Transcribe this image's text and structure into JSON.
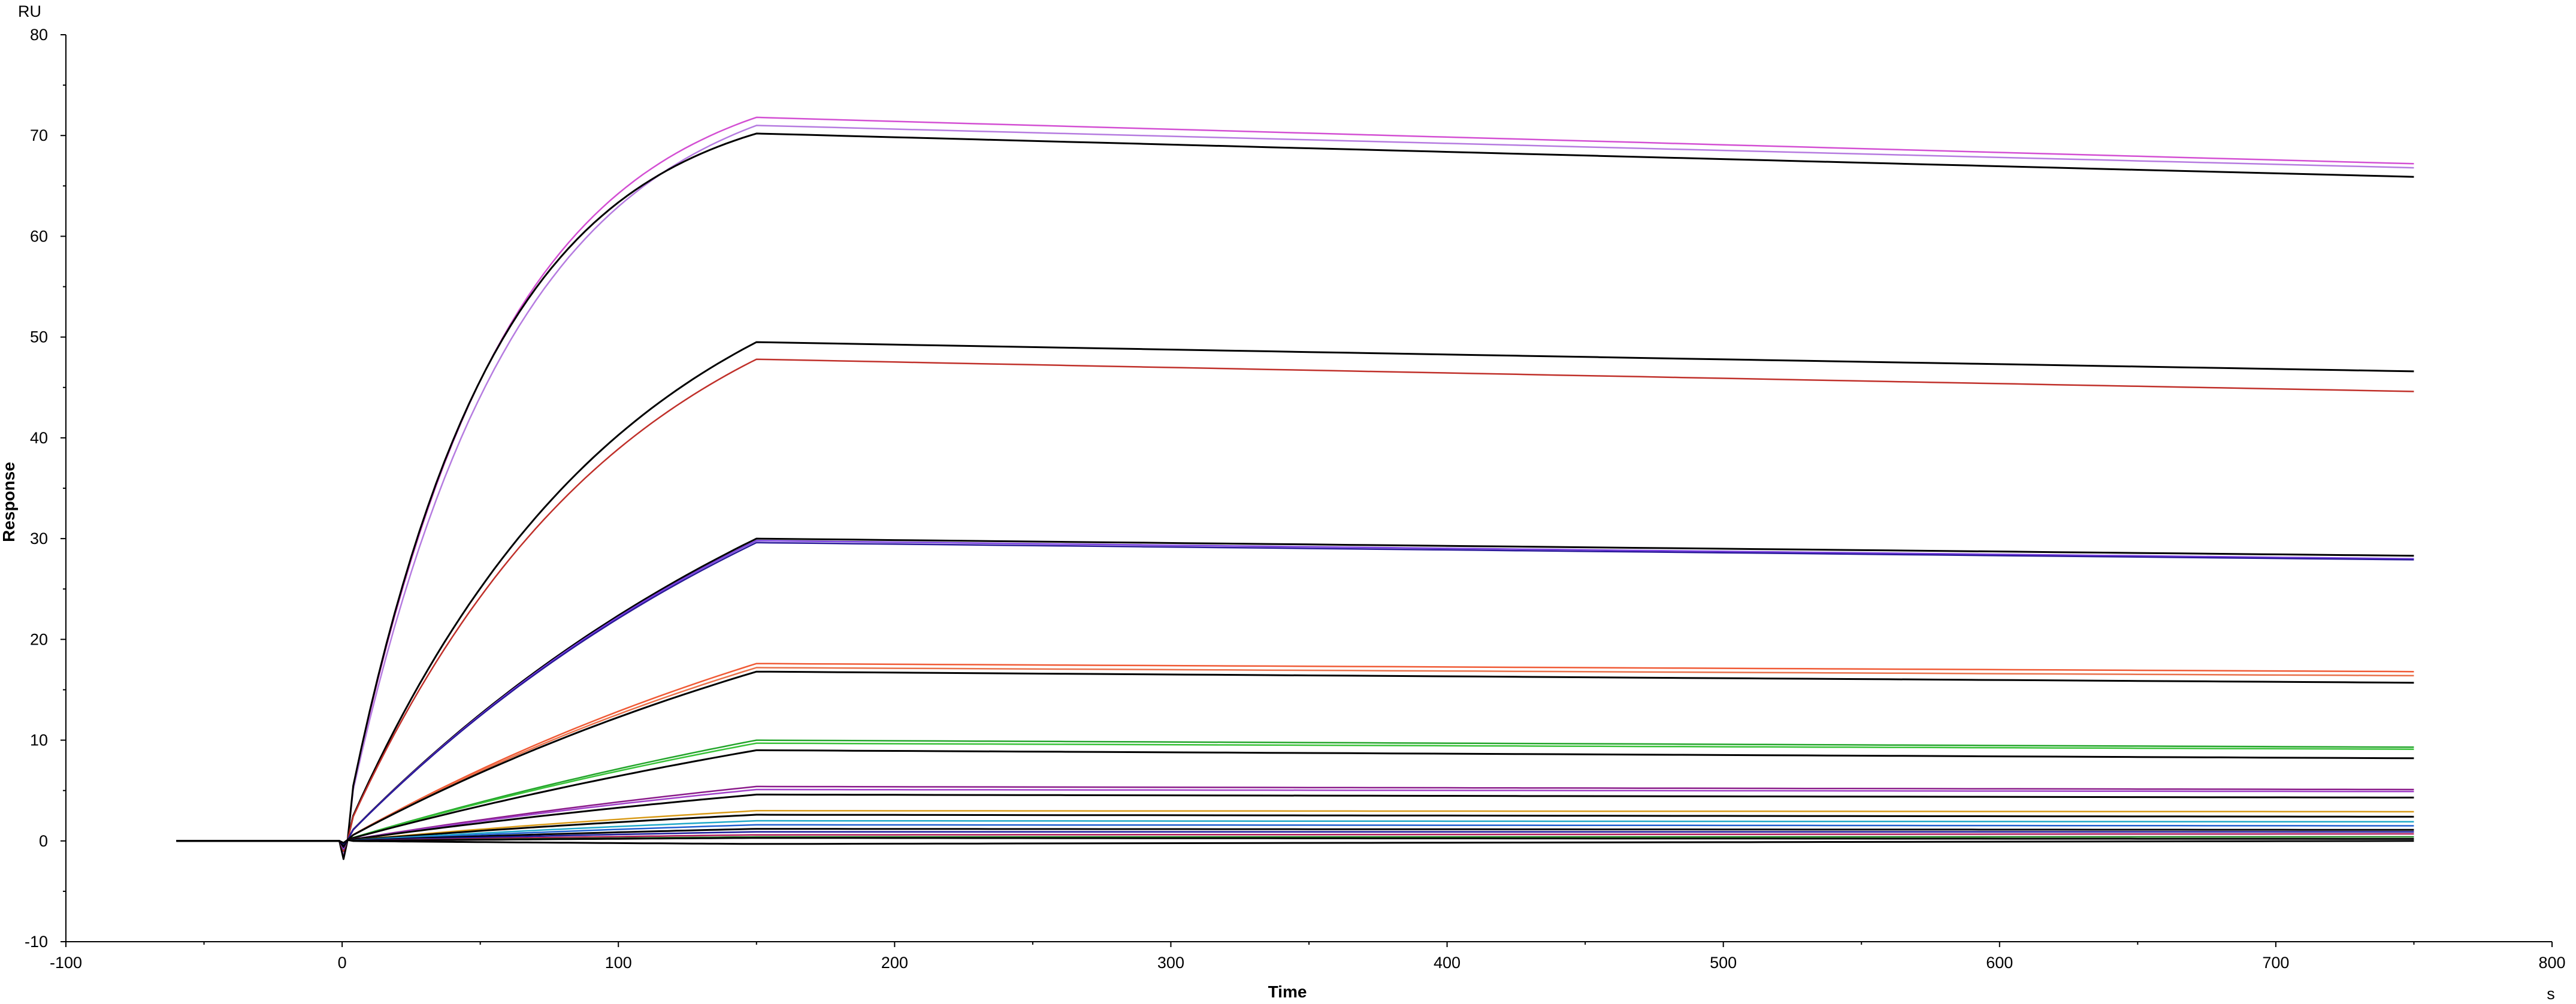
{
  "chart_data": {
    "type": "line",
    "xlabel": "Time",
    "ylabel": "Response",
    "x_unit": "s",
    "y_unit": "RU",
    "xlim": [
      -100,
      800
    ],
    "ylim": [
      -10,
      80
    ],
    "x_ticks": [
      "-100",
      "0",
      "100",
      "200",
      "300",
      "400",
      "500",
      "600",
      "700",
      "800"
    ],
    "y_ticks": [
      "-10",
      "0",
      "10",
      "20",
      "30",
      "40",
      "50",
      "60",
      "70",
      "80"
    ],
    "grid": false,
    "legend": "none",
    "baseline_start": -60,
    "injection_start": 0,
    "injection_end": 150,
    "run_end": 750,
    "series": [
      {
        "color": "#d34fd3",
        "assoc_end": 71.8,
        "diss_end": 67.2,
        "k_on": 0.018,
        "dip": -1.5
      },
      {
        "color": "#b57be0",
        "assoc_end": 71.0,
        "diss_end": 66.8,
        "k_on": 0.017,
        "dip": -1.2
      },
      {
        "color": "#000000",
        "assoc_end": 70.2,
        "diss_end": 65.9,
        "k_on": 0.019,
        "dip": -1.8
      },
      {
        "color": "#000000",
        "assoc_end": 49.5,
        "diss_end": 46.6,
        "k_on": 0.01,
        "dip": -1.0
      },
      {
        "color": "#c0302a",
        "assoc_end": 47.8,
        "diss_end": 44.6,
        "k_on": 0.01,
        "dip": -1.0
      },
      {
        "color": "#000000",
        "assoc_end": 30.0,
        "diss_end": 28.3,
        "k_on": 0.005,
        "dip": -0.8
      },
      {
        "color": "#7a3fe0",
        "assoc_end": 29.8,
        "diss_end": 28.0,
        "k_on": 0.005,
        "dip": -0.8
      },
      {
        "color": "#2a1a9a",
        "assoc_end": 29.6,
        "diss_end": 27.9,
        "k_on": 0.005,
        "dip": -0.6
      },
      {
        "color": "#f05a35",
        "assoc_end": 17.6,
        "diss_end": 16.8,
        "k_on": 0.004,
        "dip": -0.6
      },
      {
        "color": "#e8704a",
        "assoc_end": 17.2,
        "diss_end": 16.4,
        "k_on": 0.004,
        "dip": -0.6
      },
      {
        "color": "#000000",
        "assoc_end": 16.8,
        "diss_end": 15.7,
        "k_on": 0.004,
        "dip": -0.6
      },
      {
        "color": "#22a52a",
        "assoc_end": 10.0,
        "diss_end": 9.3,
        "k_on": 0.003,
        "dip": -0.5
      },
      {
        "color": "#38c238",
        "assoc_end": 9.7,
        "diss_end": 9.1,
        "k_on": 0.003,
        "dip": -0.5
      },
      {
        "color": "#000000",
        "assoc_end": 9.0,
        "diss_end": 8.2,
        "k_on": 0.003,
        "dip": -0.5
      },
      {
        "color": "#8a1a8a",
        "assoc_end": 5.4,
        "diss_end": 5.1,
        "k_on": 0.003,
        "dip": -0.4
      },
      {
        "color": "#a040c8",
        "assoc_end": 5.1,
        "diss_end": 4.9,
        "k_on": 0.003,
        "dip": -0.4
      },
      {
        "color": "#000000",
        "assoc_end": 4.6,
        "diss_end": 4.3,
        "k_on": 0.003,
        "dip": -0.4
      },
      {
        "color": "#d89a18",
        "assoc_end": 3.0,
        "diss_end": 2.9,
        "k_on": 0.003,
        "dip": -0.3
      },
      {
        "color": "#000000",
        "assoc_end": 2.6,
        "diss_end": 2.4,
        "k_on": 0.003,
        "dip": -0.3
      },
      {
        "color": "#20a8c8",
        "assoc_end": 2.0,
        "diss_end": 1.9,
        "k_on": 0.003,
        "dip": -0.3
      },
      {
        "color": "#2060d0",
        "assoc_end": 1.6,
        "diss_end": 1.5,
        "k_on": 0.003,
        "dip": -0.3
      },
      {
        "color": "#000000",
        "assoc_end": 1.2,
        "diss_end": 1.1,
        "k_on": 0.003,
        "dip": -0.3
      },
      {
        "color": "#1a1a9a",
        "assoc_end": 0.9,
        "diss_end": 0.9,
        "k_on": 0.003,
        "dip": -0.3
      },
      {
        "color": "#b01a5a",
        "assoc_end": 0.6,
        "diss_end": 0.7,
        "k_on": 0.003,
        "dip": -0.2
      },
      {
        "color": "#2a8a2a",
        "assoc_end": 0.4,
        "diss_end": 0.4,
        "k_on": 0.003,
        "dip": -0.2
      },
      {
        "color": "#000000",
        "assoc_end": 0.3,
        "diss_end": 0.2,
        "k_on": 0.003,
        "dip": -0.2
      },
      {
        "color": "#000000",
        "assoc_end": -0.3,
        "diss_end": 0.0,
        "k_on": 0.003,
        "dip": -0.2
      }
    ]
  }
}
